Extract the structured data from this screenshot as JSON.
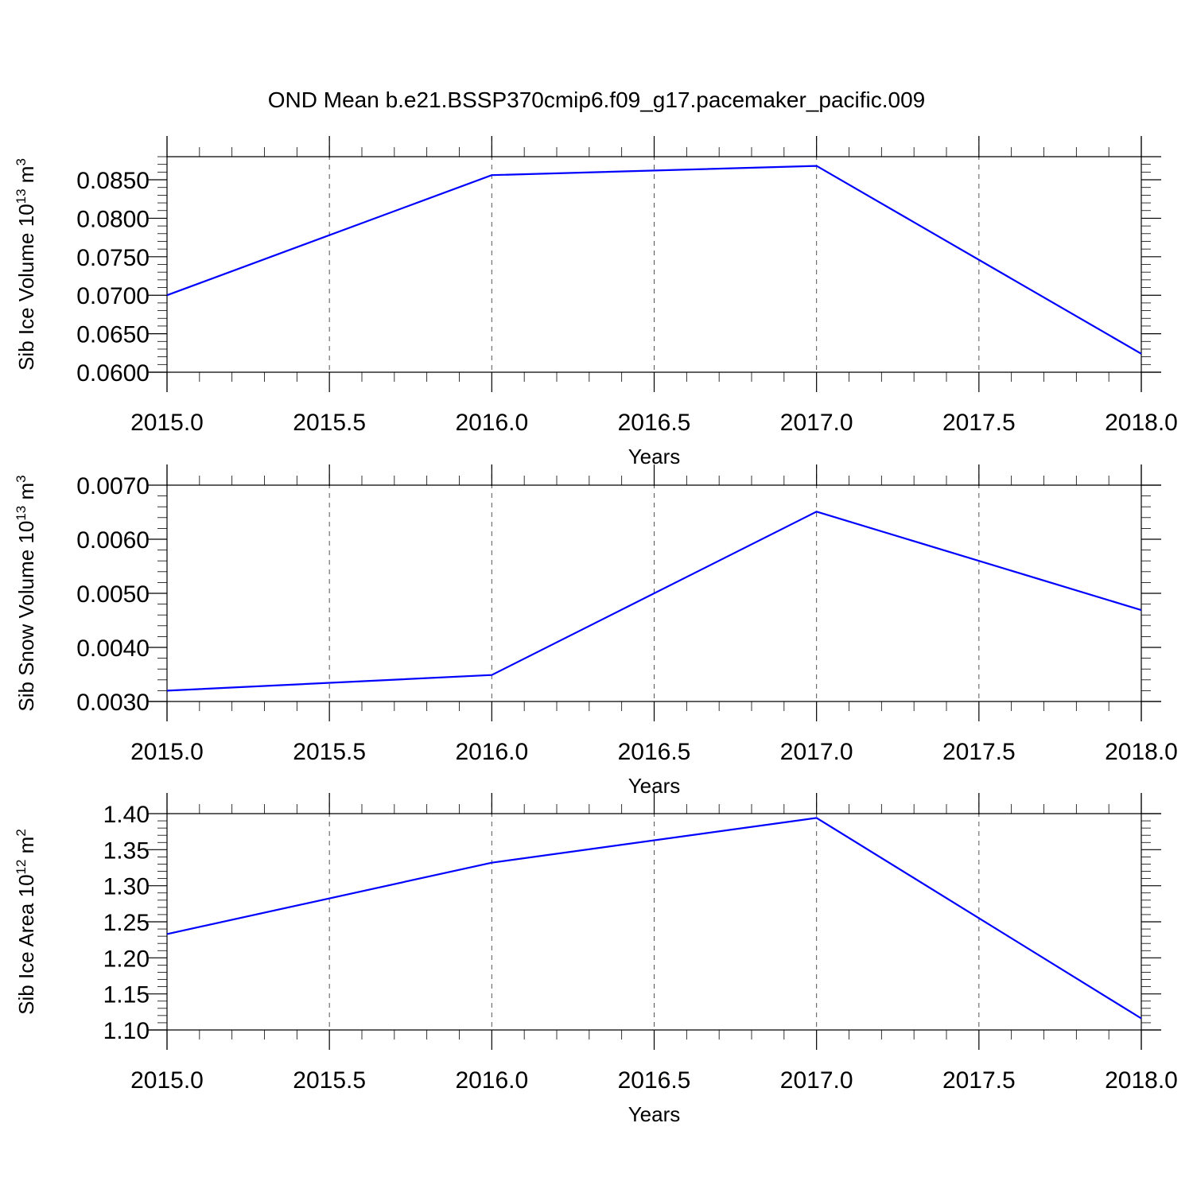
{
  "figure": {
    "title": "OND Mean b.e21.BSSP370cmip6.f09_g17.pacemaker_pacific.009"
  },
  "colors": {
    "series": "#0000ff",
    "axis": "#000000",
    "grid": "#555555"
  },
  "chart_data": [
    {
      "type": "line",
      "x": [
        2015,
        2016,
        2017,
        2018
      ],
      "series": [
        {
          "values": [
            0.07,
            0.0856,
            0.0868,
            0.0624
          ]
        }
      ],
      "xlabel": "Years",
      "ylabel": "Sib Ice Volume 10",
      "ylabel_sup": "13",
      "ylabel_unit": " m",
      "ylabel_unit_sup": "3",
      "xlim": [
        2015,
        2018
      ],
      "ylim": [
        0.06,
        0.088
      ],
      "x_ticks": [
        "2015.0",
        "2015.5",
        "2016.0",
        "2016.5",
        "2017.0",
        "2017.5",
        "2018.0"
      ],
      "y_ticks": [
        "0.0600",
        "0.0650",
        "0.0700",
        "0.0750",
        "0.0800",
        "0.0850"
      ],
      "grid": "x-dashed"
    },
    {
      "type": "line",
      "x": [
        2015,
        2016,
        2017,
        2018
      ],
      "series": [
        {
          "values": [
            0.0032,
            0.00349,
            0.00651,
            0.00469
          ]
        }
      ],
      "xlabel": "Years",
      "ylabel": "Sib Snow Volume 10",
      "ylabel_sup": "13",
      "ylabel_unit": " m",
      "ylabel_unit_sup": "3",
      "xlim": [
        2015,
        2018
      ],
      "ylim": [
        0.003,
        0.007
      ],
      "x_ticks": [
        "2015.0",
        "2015.5",
        "2016.0",
        "2016.5",
        "2017.0",
        "2017.5",
        "2018.0"
      ],
      "y_ticks": [
        "0.0030",
        "0.0040",
        "0.0050",
        "0.0060",
        "0.0070"
      ],
      "grid": "x-dashed"
    },
    {
      "type": "line",
      "x": [
        2015,
        2016,
        2017,
        2018
      ],
      "series": [
        {
          "values": [
            1.233,
            1.332,
            1.394,
            1.116
          ]
        }
      ],
      "xlabel": "Years",
      "ylabel": "Sib Ice Area 10",
      "ylabel_sup": "12",
      "ylabel_unit": " m",
      "ylabel_unit_sup": "2",
      "xlim": [
        2015,
        2018
      ],
      "ylim": [
        1.1,
        1.4
      ],
      "x_ticks": [
        "2015.0",
        "2015.5",
        "2016.0",
        "2016.5",
        "2017.0",
        "2017.5",
        "2018.0"
      ],
      "y_ticks": [
        "1.10",
        "1.15",
        "1.20",
        "1.25",
        "1.30",
        "1.35",
        "1.40"
      ],
      "grid": "x-dashed"
    }
  ]
}
